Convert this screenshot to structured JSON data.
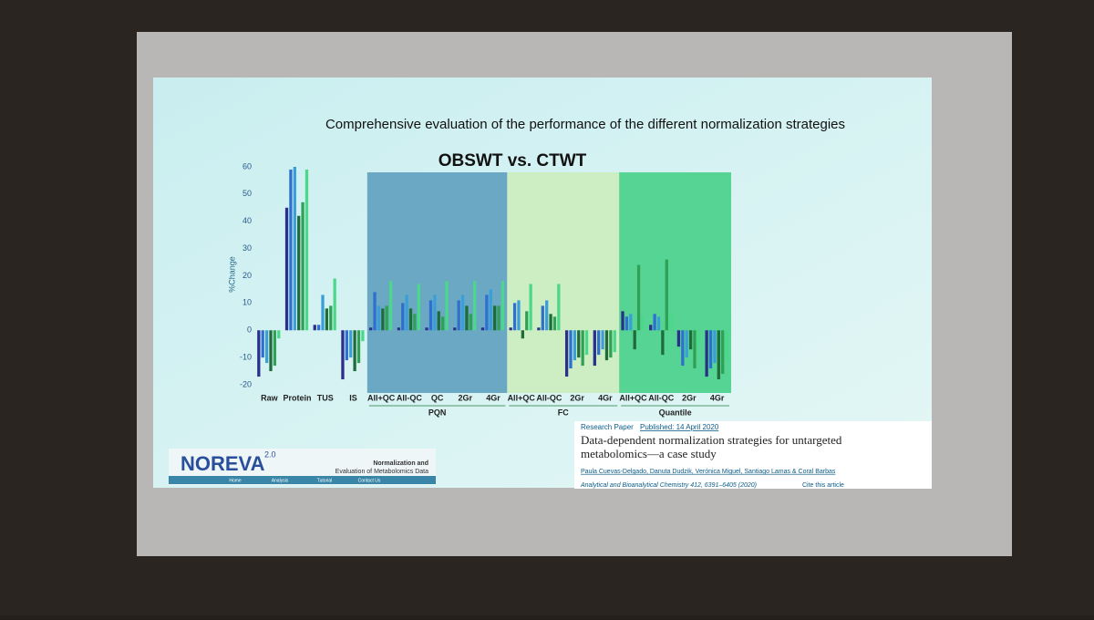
{
  "slide": {
    "title": "Comprehensive evaluation of the performance of the different normalization strategies"
  },
  "chart_data": {
    "type": "bar",
    "title": "OBSWT vs. CTWT",
    "y_label": "%Change",
    "categories": [
      "Raw",
      "Protein",
      "TUS",
      "IS",
      "All+QC",
      "All-QC",
      "QC",
      "2Gr",
      "4Gr",
      "All+QC",
      "All-QC",
      "2Gr",
      "4Gr",
      "All+QC",
      "All-QC",
      "2Gr",
      "4Gr"
    ],
    "series": [
      {
        "color": "#2a2f8a",
        "values": [
          -17,
          45,
          2,
          -18,
          1,
          1,
          1,
          1,
          1,
          1,
          1,
          -17,
          -13,
          7,
          2,
          -6,
          -17
        ]
      },
      {
        "color": "#2f6fd0",
        "values": [
          -10,
          59,
          2,
          -11,
          14,
          10,
          11,
          11,
          13,
          10,
          9,
          -14,
          -9,
          5,
          6,
          -13,
          -14
        ]
      },
      {
        "color": "#3c9ed8",
        "values": [
          -12,
          60,
          13,
          -10,
          9,
          13,
          13,
          13,
          15,
          11,
          11,
          -11,
          -7,
          6,
          5,
          -10,
          -12
        ]
      },
      {
        "color": "#1f6b3a",
        "values": [
          -15,
          42,
          8,
          -15,
          8,
          8,
          7,
          9,
          9,
          -3,
          6,
          -10,
          -11,
          -7,
          -9,
          -7,
          -18
        ]
      },
      {
        "color": "#2fa055",
        "values": [
          -13,
          47,
          9,
          -12,
          9,
          6,
          5,
          6,
          9,
          7,
          5,
          -13,
          -10,
          24,
          26,
          -14,
          -16
        ]
      },
      {
        "color": "#4cd88a",
        "values": [
          -3,
          59,
          19,
          -4,
          18,
          17,
          18,
          18,
          18,
          17,
          17,
          -9,
          -8,
          5,
          6,
          -5,
          -11
        ]
      }
    ],
    "groups": [
      {
        "label": "PQN",
        "start": 4,
        "end": 8,
        "color": "#6aa8c4"
      },
      {
        "label": "FC",
        "start": 9,
        "end": 12,
        "color": "#cdeec2"
      },
      {
        "label": "Quantile",
        "start": 13,
        "end": 16,
        "color": "#55d493"
      }
    ],
    "ylim": [
      -21,
      62
    ],
    "yticks": [
      -20,
      -10,
      0,
      10,
      20,
      30,
      40,
      50,
      60
    ]
  },
  "paper": {
    "kind": "Research Paper",
    "published": "Published: 14 April 2020",
    "title_lines": [
      "Data-dependent normalization strategies for untargeted",
      "metabolomics—a case study"
    ],
    "authors": "Paula Cuevas-Delgado, Danuta Dudzik, Verónica Miguel, Santiago Lamas & Coral Barbas",
    "journal": "Analytical and Bioanalytical Chemistry 412, 6391–6405 (2020)",
    "cite": "Cite this article"
  },
  "logo": {
    "name": "NOREVA",
    "version": "2.0",
    "line1": "Normalization and",
    "line2": "Evaluation of Metabolomics Data",
    "nav": [
      "Home",
      "Analysis",
      "Tutorial",
      "Contact Us"
    ]
  }
}
